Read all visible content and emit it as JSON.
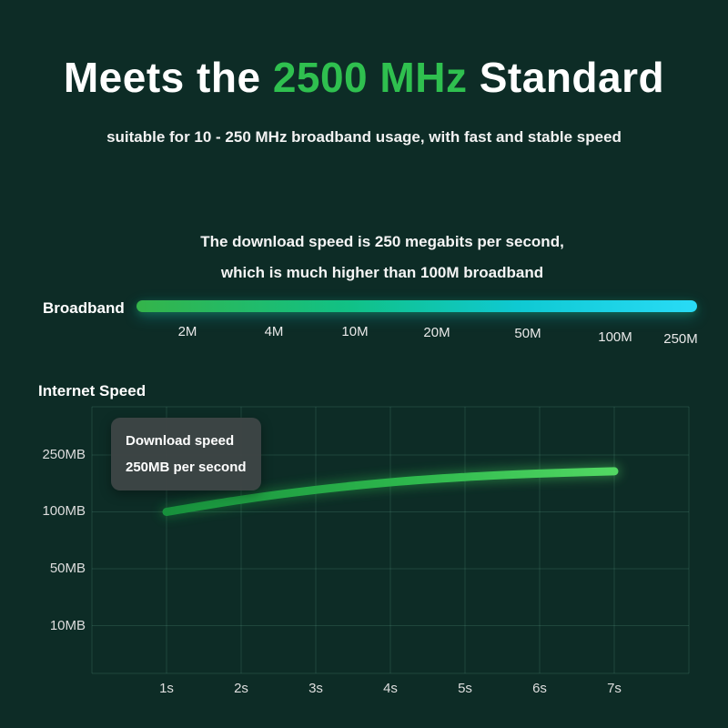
{
  "page": {
    "title_prefix": "Meets the ",
    "title_highlight": "2500 MHz",
    "title_suffix": " Standard",
    "subtitle": "suitable for 10 - 250 MHz broadband usage, with fast and stable speed"
  },
  "broadband": {
    "description_line1": "The download speed is 250 megabits per second,",
    "description_line2": "which is much higher than 100M broadband",
    "label": "Broadband",
    "scale_labels": [
      "2M",
      "4M",
      "10M",
      "20M",
      "50M",
      "100M",
      "250M"
    ],
    "bar_gradient": [
      "#34b44a",
      "#11c186",
      "#0fc9d2",
      "#29dbf6"
    ]
  },
  "chart": {
    "title": "Internet Speed",
    "tooltip_line1": "Download speed",
    "tooltip_line2": "250MB per second",
    "y_labels": [
      "250MB",
      "100MB",
      "50MB",
      "10MB"
    ],
    "x_labels": [
      "1s",
      "2s",
      "3s",
      "4s",
      "5s",
      "6s",
      "7s"
    ]
  },
  "chart_data": {
    "type": "line",
    "title": "Internet Speed",
    "x": [
      1,
      2,
      3,
      4,
      5,
      6,
      7
    ],
    "x_unit": "s",
    "y_unit": "MB",
    "y_ticks": [
      10,
      50,
      100,
      250
    ],
    "series": [
      {
        "name": "Download speed",
        "values": [
          100,
          132,
          158,
          178,
          192,
          201,
          207
        ]
      }
    ],
    "annotation": "Download speed 250MB per second",
    "grid": true,
    "legend": "none",
    "line_gradient": [
      "#17903c",
      "#52d863"
    ]
  },
  "colors": {
    "background": "#0d2c26",
    "accent_green": "#2fc04f",
    "bar_cyan": "#29dbf6",
    "grid": "rgba(130,210,180,0.16)"
  }
}
